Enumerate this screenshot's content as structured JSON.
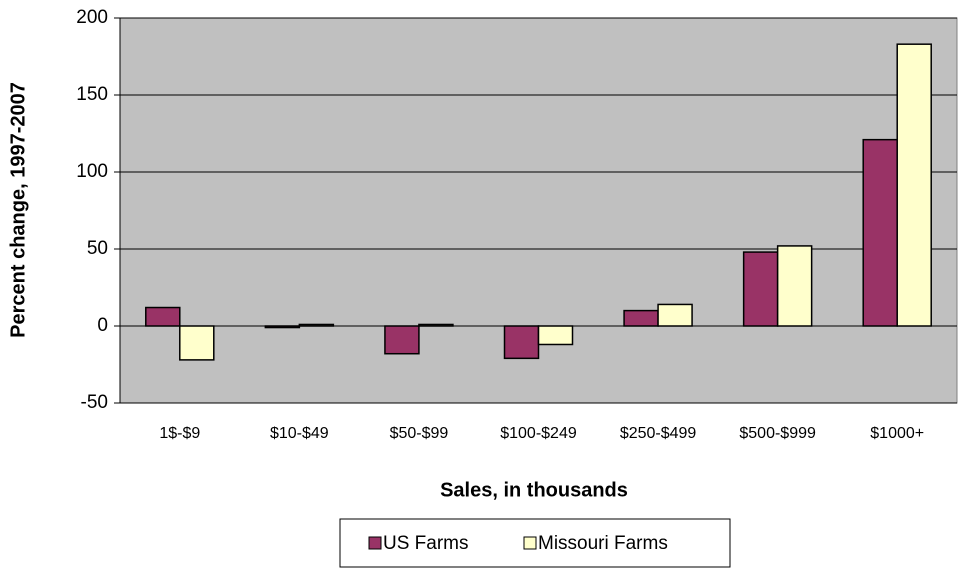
{
  "chart_data": {
    "type": "bar",
    "x_label": "Sales, in thousands",
    "y_label": "Percent change, 1997-2007",
    "categories": [
      "1$-$9",
      "$10-$49",
      "$50-$99",
      "$100-$249",
      "$250-$499",
      "$500-$999",
      "$1000+"
    ],
    "series": [
      {
        "name": "US Farms",
        "color": "#993366",
        "values": [
          12,
          -1,
          -18,
          -21,
          10,
          48,
          121
        ]
      },
      {
        "name": "Missouri Farms",
        "color": "#ffffcc",
        "values": [
          -22,
          1,
          1,
          -12,
          14,
          52,
          183
        ]
      }
    ],
    "ylim": [
      -50,
      200
    ],
    "yticks": [
      -50,
      0,
      50,
      100,
      150,
      200
    ],
    "grid": true,
    "legend": "bottom"
  }
}
